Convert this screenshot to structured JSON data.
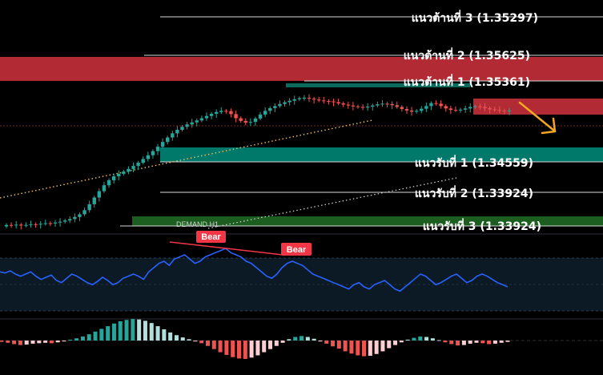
{
  "chart_data": {
    "type": "candlestick",
    "colors": {
      "bull": "#26a69a",
      "bear": "#ef5350",
      "resistance_zone": "#b22a33",
      "support_zone": "#00796b",
      "demand_zone": "#1b5e20",
      "rsi_line": "#2962ff",
      "trend_dots": "#f0c060",
      "arrow": "#f5a623",
      "bear_tag": "#f23645"
    },
    "levels": [
      {
        "label": "แนวต้านที่ 3 (1.35297)",
        "price": 1.35297,
        "kind": "resistance"
      },
      {
        "label": "แนวต้านที่ 2 (1.35625)",
        "price": 1.35625,
        "kind": "resistance"
      },
      {
        "label": "แนวต้านที่ 1 (1.35361)",
        "price": 1.35361,
        "kind": "resistance"
      },
      {
        "label": "แนวรับที่ 1 (1.34559)",
        "price": 1.34559,
        "kind": "support"
      },
      {
        "label": "แนวรับที่ 2 (1.33924)",
        "price": 1.33924,
        "kind": "support"
      },
      {
        "label": "แนวรับที่ 3 (1.33924)",
        "price": 1.33924,
        "kind": "support"
      }
    ],
    "zone_labels": {
      "demand": "DEMAND H1"
    },
    "annotations": [
      {
        "text": "Bear",
        "type": "divergence"
      },
      {
        "text": "Bear",
        "type": "divergence"
      }
    ],
    "candles_close": [
      0.05,
      0.048,
      0.052,
      0.046,
      0.05,
      0.055,
      0.053,
      0.058,
      0.062,
      0.06,
      0.066,
      0.072,
      0.08,
      0.09,
      0.104,
      0.122,
      0.15,
      0.19,
      0.235,
      0.278,
      0.318,
      0.352,
      0.378,
      0.395,
      0.41,
      0.428,
      0.448,
      0.47,
      0.495,
      0.52,
      0.548,
      0.578,
      0.61,
      0.64,
      0.668,
      0.692,
      0.712,
      0.728,
      0.742,
      0.755,
      0.77,
      0.785,
      0.8,
      0.812,
      0.82,
      0.818,
      0.798,
      0.77,
      0.752,
      0.74,
      0.745,
      0.768,
      0.795,
      0.82,
      0.838,
      0.852,
      0.866,
      0.878,
      0.888,
      0.898,
      0.905,
      0.908,
      0.902,
      0.896,
      0.89,
      0.886,
      0.884,
      0.878,
      0.87,
      0.862,
      0.856,
      0.85,
      0.846,
      0.842,
      0.848,
      0.856,
      0.864,
      0.868,
      0.866,
      0.858,
      0.846,
      0.832,
      0.822,
      0.814,
      0.82,
      0.834,
      0.852,
      0.872,
      0.868,
      0.852,
      0.836,
      0.826,
      0.824,
      0.828,
      0.836,
      0.846,
      0.85,
      0.846,
      0.838,
      0.83,
      0.826,
      0.822,
      0.818,
      0.822
    ],
    "rsi": [
      62,
      61,
      63,
      60,
      58,
      60,
      62,
      58,
      55,
      57,
      59,
      54,
      52,
      56,
      60,
      58,
      55,
      52,
      50,
      53,
      57,
      54,
      50,
      52,
      56,
      58,
      60,
      58,
      55,
      62,
      66,
      70,
      72,
      68,
      74,
      76,
      78,
      74,
      70,
      72,
      76,
      78,
      80,
      82,
      84,
      80,
      78,
      76,
      72,
      70,
      66,
      62,
      58,
      56,
      60,
      66,
      70,
      72,
      70,
      68,
      64,
      60,
      58,
      56,
      54,
      52,
      50,
      48,
      46,
      50,
      52,
      48,
      46,
      50,
      52,
      54,
      50,
      46,
      44,
      48,
      52,
      56,
      60,
      58,
      54,
      50,
      52,
      55,
      58,
      60,
      56,
      52,
      54,
      58,
      60,
      58,
      55,
      52,
      50,
      48
    ],
    "macd_hist": [
      -0.3,
      -0.5,
      -0.8,
      -1.0,
      -0.9,
      -0.7,
      -0.6,
      -0.5,
      -0.6,
      -0.4,
      -0.2,
      0.2,
      0.5,
      0.9,
      1.4,
      2.0,
      2.6,
      3.2,
      3.8,
      4.3,
      4.6,
      4.8,
      4.7,
      4.4,
      3.9,
      3.2,
      2.5,
      1.8,
      1.2,
      0.7,
      0.3,
      -0.2,
      -0.6,
      -1.2,
      -1.9,
      -2.6,
      -3.2,
      -3.7,
      -4.0,
      -4.1,
      -3.8,
      -3.3,
      -2.6,
      -1.9,
      -1.2,
      -0.5,
      0.3,
      0.8,
      1.0,
      0.8,
      0.4,
      -0.2,
      -0.7,
      -1.3,
      -1.8,
      -2.4,
      -2.9,
      -3.3,
      -3.5,
      -3.4,
      -3.0,
      -2.4,
      -1.7,
      -1.0,
      -0.4,
      0.2,
      0.6,
      0.9,
      0.8,
      0.5,
      0.1,
      -0.4,
      -0.8,
      -1.1,
      -1.0,
      -0.7,
      -0.5,
      -0.6,
      -0.8,
      -0.7,
      -0.5,
      -0.3
    ]
  }
}
